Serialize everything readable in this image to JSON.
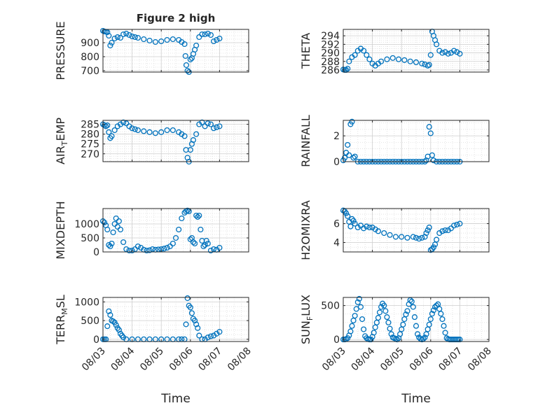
{
  "figure_title": "Figure 2 high",
  "colors": {
    "marker": "#0072BD",
    "axis": "#262626",
    "grid": "#dddddd"
  },
  "chart_data": [
    {
      "type": "scatter",
      "title": "Figure 2 high",
      "ylabel": "PRESSURE",
      "xlabel": "",
      "ylim": [
        690,
        995
      ],
      "yticks": [
        700,
        800,
        900
      ],
      "yticklabels": [
        "700",
        "800",
        "900"
      ],
      "xlim": [
        0,
        5
      ],
      "xticks": [
        0,
        1,
        2,
        3,
        4,
        5
      ],
      "xticklabels": [
        "08/03",
        "08/04",
        "08/05",
        "08/06",
        "08/07",
        "08/08"
      ],
      "grid": true,
      "x": [
        0.0,
        0.05,
        0.1,
        0.15,
        0.2,
        0.25,
        0.3,
        0.4,
        0.5,
        0.6,
        0.7,
        0.8,
        0.9,
        1.0,
        1.1,
        1.2,
        1.4,
        1.6,
        1.8,
        2.0,
        2.2,
        2.4,
        2.6,
        2.7,
        2.8,
        2.83,
        2.86,
        2.9,
        2.95,
        3.0,
        3.05,
        3.1,
        3.15,
        3.2,
        3.3,
        3.4,
        3.5,
        3.6,
        3.7,
        3.8,
        3.9,
        4.0
      ],
      "y": [
        985,
        980,
        978,
        975,
        950,
        880,
        900,
        930,
        940,
        935,
        960,
        965,
        955,
        945,
        940,
        935,
        925,
        915,
        905,
        910,
        920,
        925,
        920,
        905,
        890,
        805,
        740,
        700,
        690,
        780,
        790,
        820,
        850,
        880,
        940,
        960,
        960,
        965,
        955,
        910,
        920,
        930
      ]
    },
    {
      "type": "scatter",
      "ylabel": "THETA",
      "xlabel": "",
      "ylim": [
        285.5,
        295.5
      ],
      "yticks": [
        286,
        288,
        290,
        292,
        294
      ],
      "yticklabels": [
        "286",
        "288",
        "290",
        "292",
        "294"
      ],
      "xlim": [
        0,
        5
      ],
      "xticks": [
        0,
        1,
        2,
        3,
        4,
        5
      ],
      "xticklabels": [
        "08/03",
        "08/04",
        "08/05",
        "08/06",
        "08/07",
        "08/08"
      ],
      "grid": true,
      "x": [
        0.0,
        0.05,
        0.1,
        0.15,
        0.2,
        0.3,
        0.4,
        0.5,
        0.6,
        0.7,
        0.8,
        0.9,
        1.0,
        1.1,
        1.2,
        1.3,
        1.5,
        1.7,
        1.9,
        2.1,
        2.3,
        2.5,
        2.7,
        2.8,
        2.9,
        2.95,
        3.0,
        3.05,
        3.1,
        3.15,
        3.2,
        3.3,
        3.4,
        3.5,
        3.6,
        3.7,
        3.8,
        3.9,
        4.0
      ],
      "y": [
        286.1,
        286.0,
        286.0,
        286.3,
        288.0,
        289.0,
        289.5,
        290.5,
        291.0,
        290.5,
        289.5,
        288.5,
        287.5,
        287.0,
        287.5,
        288.0,
        288.5,
        288.8,
        288.5,
        288.3,
        288.0,
        287.8,
        287.5,
        287.3,
        287.0,
        287.2,
        289.5,
        295.0,
        294.0,
        293.0,
        292.0,
        290.5,
        290.0,
        290.2,
        289.8,
        290.0,
        290.5,
        290.2,
        289.8
      ]
    },
    {
      "type": "scatter",
      "ylabel": "AIR_TEMP",
      "xlabel": "",
      "ylim": [
        266,
        287
      ],
      "yticks": [
        270,
        275,
        280,
        285
      ],
      "yticklabels": [
        "270",
        "275",
        "280",
        "285"
      ],
      "xlim": [
        0,
        5
      ],
      "xticks": [
        0,
        1,
        2,
        3,
        4,
        5
      ],
      "xticklabels": [
        "08/03",
        "08/04",
        "08/05",
        "08/06",
        "08/07",
        "08/08"
      ],
      "grid": true,
      "x": [
        0.0,
        0.05,
        0.1,
        0.15,
        0.2,
        0.25,
        0.3,
        0.4,
        0.5,
        0.6,
        0.7,
        0.8,
        0.9,
        1.0,
        1.1,
        1.2,
        1.4,
        1.6,
        1.8,
        2.0,
        2.2,
        2.4,
        2.6,
        2.7,
        2.8,
        2.85,
        2.9,
        2.95,
        3.0,
        3.05,
        3.1,
        3.2,
        3.3,
        3.4,
        3.5,
        3.6,
        3.7,
        3.8,
        3.9,
        4.0
      ],
      "y": [
        285.0,
        284.5,
        284.0,
        284.5,
        281.0,
        278.0,
        279.0,
        282.0,
        284.0,
        285.0,
        286.0,
        285.5,
        284.0,
        283.0,
        282.5,
        282.0,
        281.5,
        281.0,
        280.5,
        281.0,
        282.0,
        282.0,
        281.0,
        280.0,
        279.0,
        272.0,
        268.0,
        266.0,
        272.0,
        275.0,
        277.0,
        280.0,
        285.0,
        286.0,
        284.0,
        285.5,
        285.0,
        283.0,
        283.5,
        284.0
      ]
    },
    {
      "type": "scatter",
      "ylabel": "RAINFALL",
      "xlabel": "",
      "ylim": [
        0,
        3.2
      ],
      "yticks": [
        0,
        2
      ],
      "yticklabels": [
        "0",
        "2"
      ],
      "xlim": [
        0,
        5
      ],
      "xticks": [
        0,
        1,
        2,
        3,
        4,
        5
      ],
      "xticklabels": [
        "08/03",
        "08/04",
        "08/05",
        "08/06",
        "08/07",
        "08/08"
      ],
      "grid": true,
      "x": [
        0.0,
        0.05,
        0.1,
        0.15,
        0.2,
        0.25,
        0.3,
        0.35,
        0.4,
        0.5,
        0.6,
        0.7,
        0.8,
        0.9,
        1.0,
        1.1,
        1.2,
        1.3,
        1.4,
        1.5,
        1.6,
        1.7,
        1.8,
        1.9,
        2.0,
        2.1,
        2.2,
        2.3,
        2.4,
        2.5,
        2.6,
        2.7,
        2.8,
        2.85,
        2.9,
        2.95,
        3.0,
        3.05,
        3.1,
        3.2,
        3.3,
        3.4,
        3.5,
        3.6,
        3.7,
        3.8,
        3.9,
        4.0
      ],
      "y": [
        0.1,
        0.3,
        0.7,
        1.3,
        0.5,
        2.9,
        3.1,
        0.3,
        0.4,
        0,
        0,
        0,
        0,
        0,
        0,
        0,
        0,
        0,
        0,
        0,
        0,
        0,
        0,
        0,
        0,
        0,
        0,
        0,
        0,
        0,
        0,
        0,
        0,
        0.1,
        0.4,
        2.7,
        2.2,
        0.5,
        0.1,
        0,
        0,
        0,
        0,
        0,
        0,
        0,
        0,
        0
      ]
    },
    {
      "type": "scatter",
      "ylabel": "MIXDEPTH",
      "xlabel": "",
      "ylim": [
        0,
        1550
      ],
      "yticks": [
        0,
        500,
        1000
      ],
      "yticklabels": [
        "0",
        "500",
        "1000"
      ],
      "xlim": [
        0,
        5
      ],
      "xticks": [
        0,
        1,
        2,
        3,
        4,
        5
      ],
      "xticklabels": [
        "08/03",
        "08/04",
        "08/05",
        "08/06",
        "08/07",
        "08/08"
      ],
      "grid": true,
      "x": [
        0.0,
        0.05,
        0.1,
        0.15,
        0.2,
        0.25,
        0.3,
        0.35,
        0.4,
        0.45,
        0.5,
        0.55,
        0.6,
        0.7,
        0.8,
        0.9,
        1.0,
        1.1,
        1.2,
        1.3,
        1.4,
        1.5,
        1.6,
        1.7,
        1.8,
        1.9,
        2.0,
        2.1,
        2.2,
        2.3,
        2.4,
        2.5,
        2.6,
        2.7,
        2.8,
        2.85,
        2.9,
        2.95,
        3.0,
        3.05,
        3.1,
        3.15,
        3.2,
        3.25,
        3.3,
        3.35,
        3.4,
        3.45,
        3.5,
        3.55,
        3.6,
        3.7,
        3.8,
        3.9,
        4.0
      ],
      "y": [
        1100,
        1050,
        950,
        800,
        250,
        200,
        300,
        700,
        1000,
        1200,
        900,
        1100,
        800,
        350,
        100,
        50,
        50,
        100,
        200,
        150,
        80,
        50,
        60,
        100,
        80,
        90,
        100,
        120,
        150,
        200,
        300,
        500,
        800,
        1200,
        1400,
        1450,
        1480,
        1450,
        450,
        500,
        350,
        300,
        1300,
        1250,
        1300,
        800,
        400,
        200,
        250,
        400,
        300,
        50,
        100,
        80,
        150
      ]
    },
    {
      "type": "scatter",
      "ylabel": "H2OMIXRA",
      "xlabel": "",
      "ylim": [
        3,
        7.6
      ],
      "yticks": [
        4,
        6
      ],
      "yticklabels": [
        "4",
        "6"
      ],
      "xlim": [
        0,
        5
      ],
      "xticks": [
        0,
        1,
        2,
        3,
        4,
        5
      ],
      "xticklabels": [
        "08/03",
        "08/04",
        "08/05",
        "08/06",
        "08/07",
        "08/08"
      ],
      "grid": true,
      "x": [
        0.0,
        0.05,
        0.1,
        0.15,
        0.2,
        0.25,
        0.3,
        0.35,
        0.4,
        0.5,
        0.6,
        0.7,
        0.8,
        0.9,
        1.0,
        1.1,
        1.2,
        1.4,
        1.6,
        1.8,
        2.0,
        2.2,
        2.4,
        2.5,
        2.6,
        2.7,
        2.8,
        2.85,
        2.9,
        2.95,
        3.0,
        3.05,
        3.1,
        3.15,
        3.2,
        3.3,
        3.4,
        3.5,
        3.6,
        3.7,
        3.8,
        3.9,
        4.0
      ],
      "y": [
        7.4,
        7.3,
        7.1,
        6.8,
        6.2,
        5.7,
        6.5,
        6.3,
        6.0,
        5.6,
        5.8,
        5.5,
        5.7,
        5.6,
        5.6,
        5.4,
        5.2,
        5.0,
        4.8,
        4.6,
        4.6,
        4.5,
        4.6,
        4.5,
        4.4,
        4.5,
        4.6,
        5.0,
        5.3,
        5.6,
        3.2,
        3.3,
        3.5,
        3.8,
        4.3,
        5.0,
        5.2,
        5.3,
        5.3,
        5.5,
        5.8,
        5.9,
        6.0
      ]
    },
    {
      "type": "scatter",
      "ylabel": "TERR_MSL",
      "xlabel": "Time",
      "ylim": [
        -60,
        1120
      ],
      "yticks": [
        0,
        500,
        1000
      ],
      "yticklabels": [
        "0",
        "500",
        "1000"
      ],
      "xlim": [
        0,
        5
      ],
      "xticks": [
        0,
        1,
        2,
        3,
        4,
        5
      ],
      "xticklabels": [
        "08/03",
        "08/04",
        "08/05",
        "08/06",
        "08/07",
        "08/08"
      ],
      "grid": true,
      "x": [
        0.0,
        0.05,
        0.1,
        0.15,
        0.2,
        0.25,
        0.3,
        0.35,
        0.4,
        0.45,
        0.5,
        0.55,
        0.6,
        0.65,
        0.7,
        0.8,
        1.0,
        1.2,
        1.4,
        1.6,
        1.8,
        2.0,
        2.2,
        2.4,
        2.6,
        2.7,
        2.8,
        2.85,
        2.9,
        2.95,
        3.0,
        3.05,
        3.1,
        3.15,
        3.2,
        3.25,
        3.3,
        3.4,
        3.5,
        3.6,
        3.7,
        3.8,
        3.9,
        4.0
      ],
      "y": [
        0,
        0,
        0,
        350,
        750,
        650,
        500,
        480,
        450,
        380,
        300,
        250,
        150,
        100,
        50,
        0,
        0,
        0,
        0,
        0,
        0,
        0,
        0,
        0,
        0,
        0,
        0,
        400,
        1100,
        900,
        850,
        700,
        550,
        500,
        400,
        300,
        100,
        0,
        0,
        50,
        80,
        100,
        150,
        200
      ]
    },
    {
      "type": "scatter",
      "ylabel": "SUN_FLUX",
      "xlabel": "Time",
      "ylim": [
        -30,
        620
      ],
      "yticks": [
        0,
        500
      ],
      "yticklabels": [
        "0",
        "500"
      ],
      "xlim": [
        0,
        5
      ],
      "xticks": [
        0,
        1,
        2,
        3,
        4,
        5
      ],
      "xticklabels": [
        "08/03",
        "08/04",
        "08/05",
        "08/06",
        "08/07",
        "08/08"
      ],
      "grid": true,
      "x": [
        0.0,
        0.05,
        0.1,
        0.15,
        0.2,
        0.25,
        0.3,
        0.35,
        0.4,
        0.45,
        0.5,
        0.55,
        0.6,
        0.65,
        0.7,
        0.75,
        0.8,
        0.85,
        0.9,
        0.95,
        1.0,
        1.05,
        1.1,
        1.15,
        1.2,
        1.25,
        1.3,
        1.35,
        1.4,
        1.45,
        1.5,
        1.55,
        1.6,
        1.65,
        1.7,
        1.75,
        1.8,
        1.85,
        1.9,
        1.95,
        2.0,
        2.05,
        2.1,
        2.15,
        2.2,
        2.25,
        2.3,
        2.35,
        2.4,
        2.45,
        2.5,
        2.55,
        2.6,
        2.65,
        2.7,
        2.75,
        2.8,
        2.85,
        2.9,
        2.95,
        3.0,
        3.05,
        3.1,
        3.15,
        3.2,
        3.25,
        3.3,
        3.35,
        3.4,
        3.45,
        3.5,
        3.55,
        3.6,
        3.65,
        3.7,
        3.75,
        3.8,
        3.85,
        3.9,
        3.95,
        4.0
      ],
      "y": [
        0,
        0,
        5,
        20,
        60,
        120,
        200,
        280,
        350,
        450,
        550,
        600,
        480,
        300,
        150,
        50,
        20,
        5,
        0,
        0,
        40,
        100,
        180,
        250,
        320,
        400,
        480,
        530,
        500,
        420,
        330,
        250,
        160,
        80,
        30,
        20,
        10,
        0,
        20,
        80,
        150,
        220,
        300,
        370,
        420,
        520,
        580,
        560,
        480,
        330,
        200,
        80,
        30,
        10,
        0,
        10,
        30,
        80,
        150,
        220,
        300,
        380,
        430,
        480,
        500,
        520,
        450,
        380,
        300,
        200,
        100,
        20,
        5,
        0,
        0,
        0,
        0,
        0,
        0,
        0,
        0
      ]
    }
  ]
}
